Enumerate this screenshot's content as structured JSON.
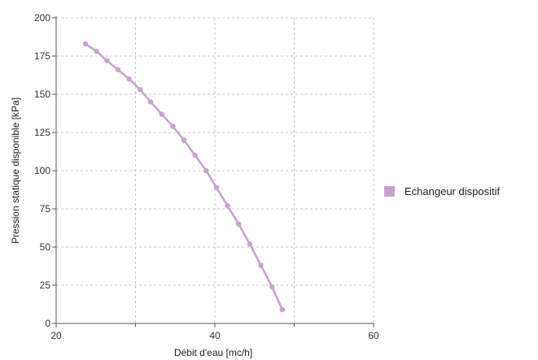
{
  "chart_data": {
    "type": "line",
    "xlabel": "Débit d'eau [mc/h]",
    "ylabel": "Pression statique disponible [kPa]",
    "xlim": [
      20,
      60
    ],
    "ylim": [
      0,
      200
    ],
    "x_ticks": [
      20,
      40,
      60
    ],
    "x_minor_ticks": [
      30,
      50
    ],
    "y_ticks": [
      0,
      25,
      50,
      75,
      100,
      125,
      150,
      175,
      200
    ],
    "grid": true,
    "legend_position": "right",
    "series": [
      {
        "name": "Echangeur dispositif",
        "color": "#c9a0d0",
        "x": [
          23.7,
          25.1,
          26.4,
          27.8,
          29.2,
          30.6,
          31.9,
          33.3,
          34.7,
          36.1,
          37.5,
          38.9,
          40.2,
          41.6,
          43.0,
          44.4,
          45.8,
          47.2,
          48.5
        ],
        "y": [
          183,
          178,
          172,
          166,
          160,
          153,
          145,
          137,
          129,
          120,
          110,
          100,
          89,
          77,
          65,
          52,
          38,
          24,
          9
        ]
      }
    ]
  }
}
